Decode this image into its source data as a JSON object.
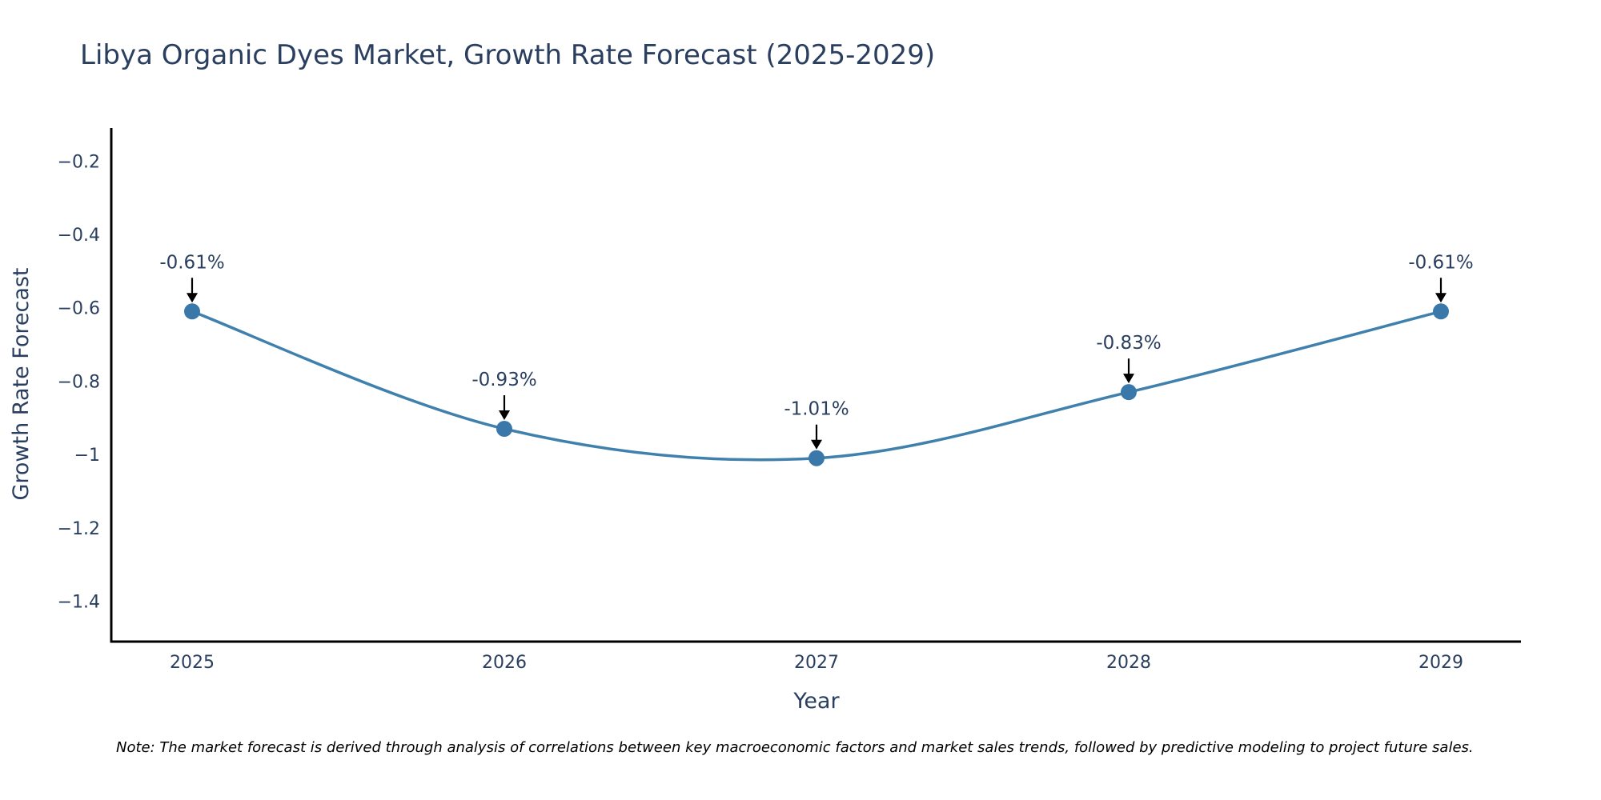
{
  "chart_data": {
    "type": "line",
    "title": "Libya Organic Dyes Market, Growth Rate Forecast (2025-2029)",
    "xlabel": "Year",
    "ylabel": "Growth Rate Forecast",
    "categories": [
      "2025",
      "2026",
      "2027",
      "2028",
      "2029"
    ],
    "series": [
      {
        "name": "Growth Rate Forecast",
        "values": [
          -0.61,
          -0.93,
          -1.01,
          -0.83,
          -0.61
        ],
        "color": "#4080ad",
        "marker_color": "#3a78aa",
        "line_shape": "spline"
      }
    ],
    "annotations": [
      "-0.61%",
      "-0.93%",
      "-1.01%",
      "-0.83%",
      "-0.61%"
    ],
    "ylim": [
      -1.51,
      -0.11
    ],
    "yticks": [
      -0.2,
      -0.4,
      -0.6,
      -0.8,
      -1,
      -1.2,
      -1.4
    ],
    "ytick_labels": [
      "−0.2",
      "−0.4",
      "−0.6",
      "−0.8",
      "−1",
      "−1.2",
      "−1.4"
    ],
    "grid": false,
    "note": "Note: The market forecast is derived through analysis of correlations between key macroeconomic factors and market sales trends, followed by predictive modeling to project future sales."
  }
}
